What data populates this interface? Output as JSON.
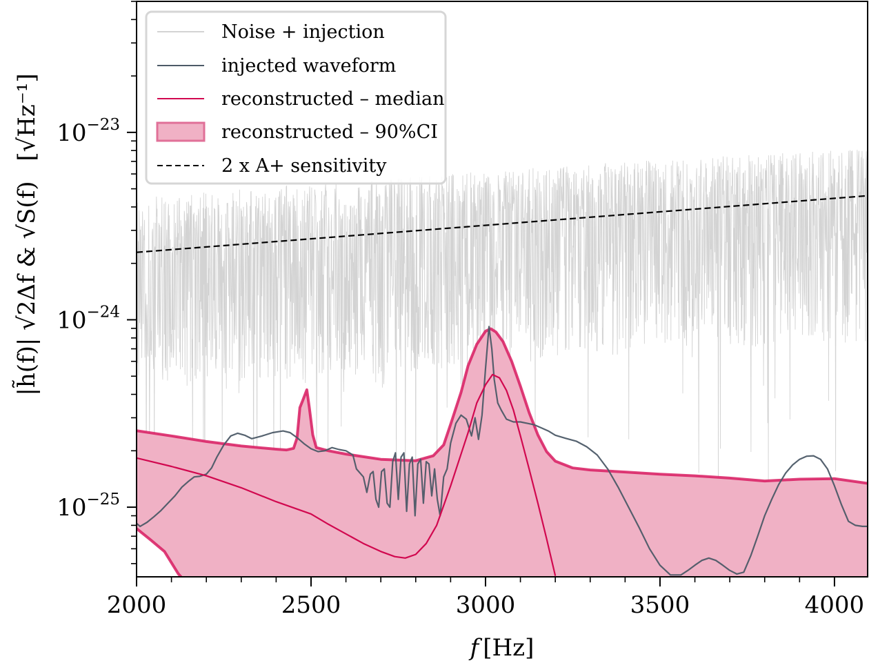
{
  "chart_data": {
    "type": "line",
    "title": "",
    "xlabel": "f [Hz]",
    "ylabel": "|h̃(f)| √(2Δf) & √S(f)  [√Hz⁻¹]",
    "ylabel_parts": {
      "main": "|h̃(f)| √2Δf & √S(f)",
      "unit": "[√Hz⁻¹]"
    },
    "xscale": "linear",
    "yscale": "log",
    "xlim": [
      2000,
      4095
    ],
    "ylim": [
      4.25e-26,
      5e-23
    ],
    "x_ticks": [
      2000,
      2500,
      3000,
      3500,
      4000
    ],
    "x_tick_labels": [
      "2000",
      "2500",
      "3000",
      "3500",
      "4000"
    ],
    "x_minor_step": 100,
    "y_ticks": [
      1e-25,
      1e-24,
      1e-23
    ],
    "y_tick_labels": [
      {
        "base": "10",
        "exp": "−25"
      },
      {
        "base": "10",
        "exp": "−24"
      },
      {
        "base": "10",
        "exp": "−23"
      }
    ],
    "grid": false,
    "legend": {
      "position": "top-left",
      "entries": [
        {
          "label": "Noise + injection",
          "style": "line",
          "color": "#d3d3d3"
        },
        {
          "label": "injected waveform",
          "style": "line",
          "color": "#4c5a67"
        },
        {
          "label": "reconstructed – median",
          "style": "line",
          "color": "#d1084f"
        },
        {
          "label": "reconstructed – 90%CI",
          "style": "patch",
          "color": "#f0b1c5",
          "edge": "#e07098"
        },
        {
          "label": "2 x A+ sensitivity",
          "style": "dashed",
          "color": "#000000"
        }
      ]
    },
    "series": [
      {
        "name": "2 x A+ sensitivity",
        "style": "dashed",
        "color": "#000000",
        "x": [
          2000,
          4095
        ],
        "y": [
          2.29e-24,
          4.59e-24
        ]
      },
      {
        "name": "Noise + injection",
        "style": "noise-band",
        "color": "#d3d3d3",
        "note": "dense noisy trace fluctuating around the sensitivity curve",
        "x": [
          2000,
          2500,
          3000,
          3500,
          4095
        ],
        "y_center": [
          2e-24,
          2.4e-24,
          2.8e-24,
          3.3e-24,
          3.8e-24
        ],
        "y_upper": [
          4.5e-24,
          5.3e-24,
          6.2e-24,
          7.2e-24,
          8.2e-24
        ],
        "y_lower_typical": [
          4e-25,
          4.8e-25,
          5.7e-25,
          6.8e-25,
          7.6e-25
        ]
      },
      {
        "name": "reconstructed – 90%CI upper",
        "color": "#d81b60",
        "x": [
          2000,
          2100,
          2200,
          2300,
          2400,
          2430,
          2450,
          2460,
          2468,
          2476,
          2488,
          2495,
          2505,
          2515,
          2550,
          2600,
          2700,
          2800,
          2850,
          2880,
          2900,
          2930,
          2950,
          2975,
          3000,
          3015,
          3030,
          3050,
          3075,
          3100,
          3125,
          3150,
          3175,
          3200,
          3250,
          3300,
          3400,
          3500,
          3600,
          3700,
          3800,
          3900,
          4000,
          4095
        ],
        "y": [
          2.56e-25,
          2.4e-25,
          2.24e-25,
          2.12e-25,
          2.04e-25,
          2.02e-25,
          2.06e-25,
          2.34e-25,
          3.4e-25,
          3.7e-25,
          4.23e-25,
          3.4e-25,
          2.43e-25,
          2.08e-25,
          2e-25,
          1.92e-25,
          1.8e-25,
          1.77e-25,
          1.88e-25,
          2.15e-25,
          2.77e-25,
          4.1e-25,
          5.69e-25,
          7.4e-25,
          8.69e-25,
          8.95e-25,
          8.6e-25,
          7.66e-25,
          6e-25,
          4.42e-25,
          3.2e-25,
          2.43e-25,
          1.98e-25,
          1.76e-25,
          1.62e-25,
          1.58e-25,
          1.54e-25,
          1.5e-25,
          1.47e-25,
          1.43e-25,
          1.38e-25,
          1.41e-25,
          1.42e-25,
          1.34e-25
        ]
      },
      {
        "name": "reconstructed – 90%CI lower",
        "color": "#d81b60",
        "x": [
          2000,
          2040,
          2080,
          2120,
          2130
        ],
        "y": [
          7.69e-26,
          6.7e-26,
          5.8e-26,
          4.4e-26,
          4.2e-26
        ]
      },
      {
        "name": "reconstructed – median",
        "color": "#d1084f",
        "x": [
          2000,
          2100,
          2200,
          2300,
          2400,
          2500,
          2550,
          2600,
          2650,
          2700,
          2740,
          2770,
          2800,
          2830,
          2860,
          2900,
          2925,
          2950,
          2975,
          3000,
          3020,
          3040,
          3060,
          3080,
          3100,
          3125,
          3150,
          3175,
          3200
        ],
        "y": [
          1.83e-25,
          1.65e-25,
          1.47e-25,
          1.27e-25,
          1.07e-25,
          9.2e-26,
          8.1e-26,
          7.2e-26,
          6.4e-26,
          5.8e-26,
          5.45e-26,
          5.35e-26,
          5.6e-26,
          6.4e-26,
          8e-26,
          1.3e-25,
          1.8e-25,
          2.5e-25,
          3.6e-25,
          4.5e-25,
          5.1e-25,
          4.9e-25,
          4.2e-25,
          3.3e-25,
          2.4e-25,
          1.6e-25,
          1.05e-25,
          6.8e-26,
          4.3e-26
        ]
      },
      {
        "name": "injected waveform",
        "color": "#4c5a67",
        "x": [
          2000,
          2010,
          2030,
          2050,
          2070,
          2090,
          2110,
          2130,
          2150,
          2165,
          2180,
          2200,
          2215,
          2230,
          2250,
          2270,
          2290,
          2310,
          2330,
          2360,
          2390,
          2420,
          2440,
          2460,
          2480,
          2500,
          2520,
          2540,
          2560,
          2580,
          2600,
          2620,
          2630,
          2650,
          2660,
          2670,
          2678,
          2686,
          2694,
          2702,
          2710,
          2718,
          2726,
          2734,
          2742,
          2750,
          2758,
          2766,
          2774,
          2782,
          2790,
          2798,
          2806,
          2814,
          2822,
          2830,
          2838,
          2846,
          2854,
          2862,
          2870,
          2880,
          2890,
          2900,
          2915,
          2930,
          2945,
          2960,
          2970,
          2980,
          2990,
          3000,
          3010,
          3018,
          3025,
          3035,
          3045,
          3060,
          3080,
          3100,
          3120,
          3140,
          3160,
          3180,
          3200,
          3230,
          3260,
          3290,
          3320,
          3350,
          3380,
          3410,
          3440,
          3470,
          3500,
          3530,
          3560,
          3580,
          3600,
          3620,
          3640,
          3660,
          3680,
          3700,
          3720,
          3740,
          3760,
          3780,
          3800,
          3820,
          3840,
          3860,
          3880,
          3900,
          3920,
          3940,
          3960,
          3980,
          4000,
          4020,
          4040,
          4060,
          4080,
          4095
        ],
        "y": [
          8.2e-26,
          7.9e-26,
          8.3e-26,
          8.9e-26,
          9.6e-26,
          1.05e-25,
          1.15e-25,
          1.28e-25,
          1.38e-25,
          1.45e-25,
          1.46e-25,
          1.5e-25,
          1.62e-25,
          1.85e-25,
          2.15e-25,
          2.4e-25,
          2.48e-25,
          2.42e-25,
          2.32e-25,
          2.4e-25,
          2.5e-25,
          2.55e-25,
          2.5e-25,
          2.35e-25,
          2.18e-25,
          2.05e-25,
          1.98e-25,
          2e-25,
          2.08e-25,
          2.03e-25,
          2e-25,
          1.9e-25,
          1.6e-25,
          1.45e-25,
          1.2e-25,
          1.5e-25,
          1.55e-25,
          1.1e-25,
          1e-25,
          1.55e-25,
          1.6e-25,
          1.05e-25,
          1e-25,
          1.75e-25,
          1.95e-25,
          1.1e-25,
          1.85e-25,
          1.95e-25,
          9.5e-26,
          1.7e-25,
          1.85e-25,
          9e-26,
          1.7e-25,
          1.8e-25,
          1.05e-25,
          1.75e-25,
          1.7e-25,
          1.15e-25,
          1.6e-25,
          1.1e-25,
          9e-26,
          1.45e-25,
          1.6e-25,
          2.2e-25,
          2.8e-25,
          3.1e-25,
          2.95e-25,
          2.4e-25,
          3e-25,
          2.3e-25,
          3.1e-25,
          5.5e-25,
          9.2e-25,
          7e-25,
          4.8e-25,
          3.6e-25,
          3.3e-25,
          2.95e-25,
          2.85e-25,
          2.85e-25,
          2.8e-25,
          2.75e-25,
          2.65e-25,
          2.55e-25,
          2.42e-25,
          2.33e-25,
          2.25e-25,
          2.1e-25,
          1.9e-25,
          1.6e-25,
          1.28e-25,
          1e-25,
          7.8e-26,
          6e-26,
          4.9e-26,
          4.35e-26,
          4.35e-26,
          4.6e-26,
          4.9e-26,
          5.2e-26,
          5.35e-26,
          5.2e-26,
          4.9e-26,
          4.6e-26,
          4.4e-26,
          4.5e-26,
          5.5e-26,
          7e-26,
          9e-26,
          1.1e-25,
          1.32e-25,
          1.52e-25,
          1.68e-25,
          1.8e-25,
          1.87e-25,
          1.88e-25,
          1.8e-25,
          1.6e-25,
          1.3e-25,
          1.03e-25,
          8.4e-26,
          8e-26,
          7.9e-26,
          7.9e-26
        ]
      }
    ]
  }
}
